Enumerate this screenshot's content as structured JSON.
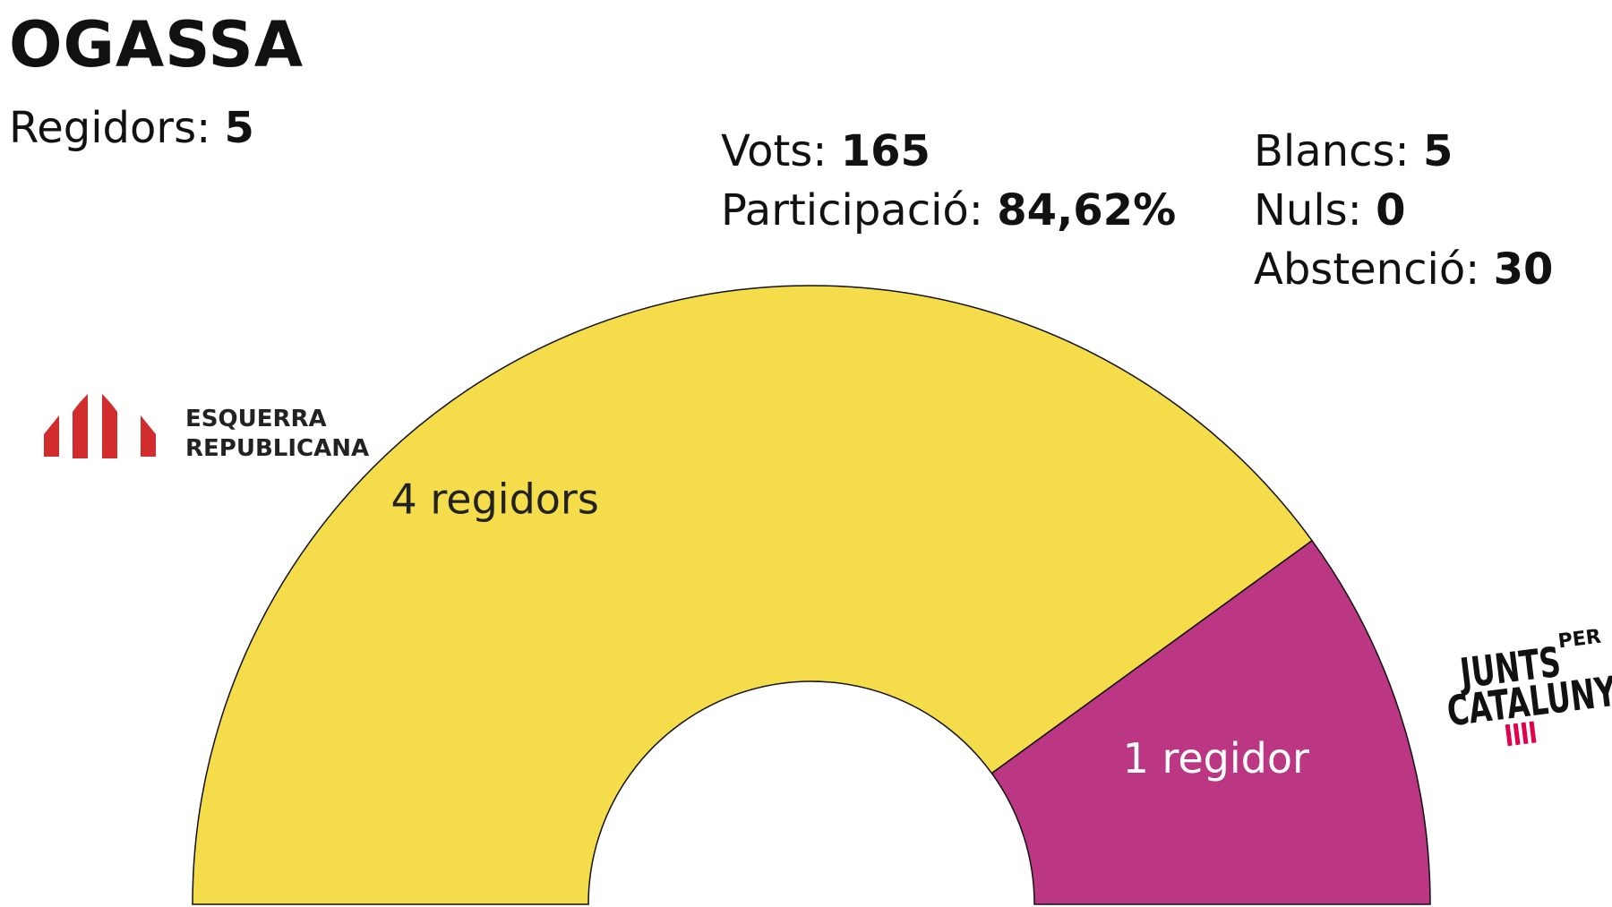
{
  "municipality": "OGASSA",
  "stats": {
    "regidors_label": "Regidors:",
    "regidors_value": "5",
    "vots_label": "Vots:",
    "vots_value": "165",
    "participacio_label": "Participació:",
    "participacio_value": "84,62%",
    "blancs_label": "Blancs:",
    "blancs_value": "5",
    "nuls_label": "Nuls:",
    "nuls_value": "0",
    "abstencio_label": "Abstenció:",
    "abstencio_value": "30"
  },
  "logos": {
    "erc": {
      "line1": "ESQUERRA",
      "line2": "REPUBLICANA",
      "color": "#d22d2e"
    },
    "junts": {
      "line1": "JUNTS",
      "line1b": "PER",
      "line2": "CATALUNYA",
      "bar_color": "#e0004d"
    }
  },
  "chart_data": {
    "type": "pie",
    "variant": "half-donut",
    "seats_total": 5,
    "slices": [
      {
        "party": "Esquerra Republicana",
        "seats": 4,
        "label": "4 regidors",
        "color": "#f5dc4b",
        "label_color": "#222222"
      },
      {
        "party": "Junts per Catalunya",
        "seats": 1,
        "label": "1 regidor",
        "color": "#bb3784",
        "label_color": "#ffffff"
      }
    ]
  }
}
